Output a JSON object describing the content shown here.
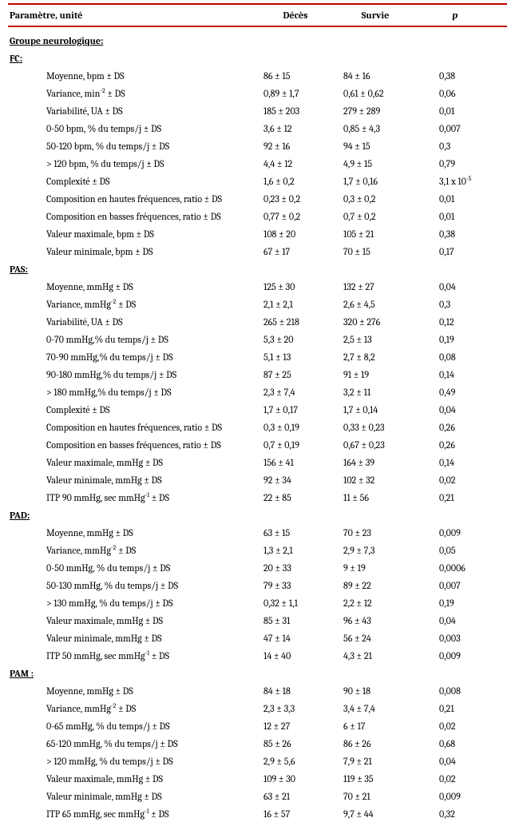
{
  "header": {
    "param_col": "Paramètre, unité",
    "deces_col": "Décès",
    "survie_col": "Survie",
    "p_col": "p"
  },
  "group_title": "Groupe neurologique:",
  "sections": [
    {
      "title": "FC:",
      "rows": [
        {
          "param": "Moyenne, bpm ± DS",
          "deces": "86 ± 15",
          "survie": "84 ± 16",
          "p": "0,38"
        },
        {
          "param": "Variance, min-2 ± DS",
          "sup": true,
          "deces": "0,89 ± 1,7",
          "survie": "0,61 ± 0,62",
          "p": "0,06"
        },
        {
          "param": "Variabilité, UA ± DS",
          "deces": "185 ± 203",
          "survie": "279 ± 289",
          "p": "0,01"
        },
        {
          "param": "0-50 bpm, % du temps/j ± DS",
          "deces": "3,6 ± 12",
          "survie": "0,85 ± 4,3",
          "p": "0,007"
        },
        {
          "param": "50-120 bpm, % du temps/j ± DS",
          "deces": "92 ± 16",
          "survie": "94 ± 15",
          "p": "0,3"
        },
        {
          "param": "> 120 bpm, % du temps/j ± DS",
          "deces": "4,4 ± 12",
          "survie": "4,9 ± 15",
          "p": "0,79"
        },
        {
          "param": "Complexité ± DS",
          "deces": "1,6 ± 0,2",
          "survie": "1,7 ± 0,16",
          "p": "3,1 x 10-5",
          "psup": true
        },
        {
          "param": "Composition en hautes fréquences, ratio ± DS",
          "deces": "0,23 ± 0,2",
          "survie": "0,3 ± 0,2",
          "p": "0,01"
        },
        {
          "param": "Composition en basses fréquences, ratio ± DS",
          "deces": "0,77 ± 0,2",
          "survie": "0,7 ± 0,2",
          "p": "0,01"
        },
        {
          "param": "Valeur maximale, bpm ± DS",
          "deces": "108 ± 20",
          "survie": "105 ± 21",
          "p": "0,38"
        },
        {
          "param": "Valeur minimale, bpm ± DS",
          "deces": "67 ± 17",
          "survie": "70 ± 15",
          "p": "0,17"
        }
      ]
    },
    {
      "title": "PAS:",
      "rows": [
        {
          "param": "Moyenne, mmHg ± DS",
          "deces": "125 ± 30",
          "survie": "132 ± 27",
          "p": "0,04"
        },
        {
          "param": "Variance, mmHg-2 ± DS",
          "sup": true,
          "deces": "2,1 ± 2,1",
          "survie": "2,6 ± 4,5",
          "p": "0,3"
        },
        {
          "param": "Variabilité, UA ± DS",
          "deces": "265 ± 218",
          "survie": "320 ± 276",
          "p": "0,12"
        },
        {
          "param": "0-70 mmHg,% du temps/j ± DS",
          "deces": "5,3 ± 20",
          "survie": "2,5 ± 13",
          "p": "0,19"
        },
        {
          "param": "70-90 mmHg,% du temps/j ± DS",
          "deces": "5,1 ± 13",
          "survie": "2,7 ± 8,2",
          "p": "0,08"
        },
        {
          "param": "90-180 mmHg,% du temps/j ± DS",
          "deces": "87 ± 25",
          "survie": "91 ± 19",
          "p": "0,14"
        },
        {
          "param": "> 180 mmHg,% du temps/j ± DS",
          "deces": "2,3 ± 7,4",
          "survie": "3,2 ± 11",
          "p": "0,49"
        },
        {
          "param": "Complexité ± DS",
          "deces": "1,7 ± 0,17",
          "survie": "1,7 ± 0,14",
          "p": "0,04"
        },
        {
          "param": "Composition en hautes fréquences, ratio ± DS",
          "deces": "0,3 ± 0,19",
          "survie": "0,33 ± 0,23",
          "p": "0,26"
        },
        {
          "param": "Composition en basses fréquences, ratio ± DS",
          "deces": "0,7 ± 0,19",
          "survie": "0,67 ± 0,23",
          "p": "0,26"
        },
        {
          "param": "Valeur maximale, mmHg ± DS",
          "deces": "156 ± 41",
          "survie": "164 ± 39",
          "p": "0,14"
        },
        {
          "param": "Valeur minimale, mmHg ± DS",
          "deces": "92 ± 34",
          "survie": "102 ± 32",
          "p": "0,02"
        },
        {
          "param": "ITP 90 mmHg, sec mmHg-1 ± DS",
          "sup2": true,
          "deces": "22 ± 85",
          "survie": "11 ± 56",
          "p": "0,21"
        }
      ]
    },
    {
      "title": "PAD:",
      "rows": [
        {
          "param": "Moyenne, mmHg ± DS",
          "deces": "63 ± 15",
          "survie": "70 ± 23",
          "p": "0,009"
        },
        {
          "param": "Variance, mmHg-2 ± DS",
          "sup": true,
          "deces": "1,3 ± 2,1",
          "survie": "2,9 ± 7,3",
          "p": "0,05"
        },
        {
          "param": "0-50 mmHg, % du temps/j ± DS",
          "deces": "20 ± 33",
          "survie": "9 ± 19",
          "p": "0,0006"
        },
        {
          "param": "50-130 mmHg, % du temps/j ± DS",
          "deces": "79 ± 33",
          "survie": "89 ± 22",
          "p": "0,007"
        },
        {
          "param": " > 130 mmHg, % du temps/j ± DS",
          "deces": "0,32 ± 1,1",
          "survie": "2,2 ± 12",
          "p": "0,19"
        },
        {
          "param": "Valeur maximale, mmHg ± DS",
          "deces": "85 ± 31",
          "survie": "96 ± 43",
          "p": "0,04"
        },
        {
          "param": "Valeur minimale, mmHg ± DS",
          "deces": "47 ± 14",
          "survie": "56 ± 24",
          "p": "0,003"
        },
        {
          "param": "ITP 50 mmHg, sec mmHg-1 ± DS",
          "sup2": true,
          "deces": "14 ± 40",
          "survie": "4,3 ± 21",
          "p": "0,009"
        }
      ]
    },
    {
      "title": "PAM :",
      "rows": [
        {
          "param": "Moyenne, mmHg ± DS",
          "deces": "84 ± 18",
          "survie": "90 ± 18",
          "p": "0,008"
        },
        {
          "param": "Variance, mmHg-2 ± DS",
          "sup": true,
          "deces": "2,3 ± 3,3",
          "survie": "3,4 ± 7,4",
          "p": "0,21"
        },
        {
          "param": "0-65 mmHg, % du temps/j ± DS",
          "deces": "12 ± 27",
          "survie": "6 ± 17",
          "p": "0,02"
        },
        {
          "param": "65-120 mmHg, % du temps/j ± DS",
          "deces": "85 ± 26",
          "survie": "86 ± 26",
          "p": "0,68"
        },
        {
          "param": "> 120 mmHg, % du temps/j ± DS",
          "deces": "2,9 ± 5,6",
          "survie": "7,9 ± 21",
          "p": "0,04"
        },
        {
          "param": "Valeur maximale, mmHg  ± DS",
          "deces": "109 ± 30",
          "survie": "119 ± 35",
          "p": "0,02"
        },
        {
          "param": "Valeur minimale, mmHg ± DS",
          "deces": "63 ± 21",
          "survie": "70 ± 21",
          "p": "0,009"
        },
        {
          "param": "ITP 65 mmHg, sec mmHg-1 ± DS",
          "sup2": true,
          "deces": "16 ± 57",
          "survie": "9,7 ± 44",
          "p": "0,32"
        }
      ]
    }
  ],
  "style": {
    "border_color": "#c00000",
    "background_color": "#ffffff",
    "font_family": "Cambria, Georgia, serif",
    "font_size_pt": 9
  }
}
